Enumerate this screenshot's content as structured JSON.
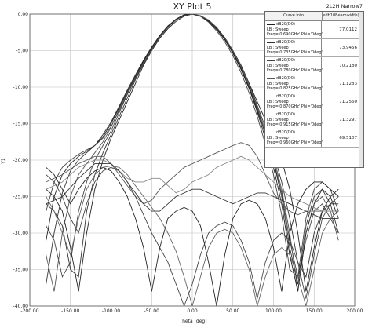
{
  "chart_data": {
    "type": "line",
    "title": "XY Plot 5",
    "corner_label": "2L2H Narrow7",
    "xlabel": "Theta [deg]",
    "ylabel": "Y1",
    "xlim": [
      -200,
      200
    ],
    "ylim": [
      -40,
      0
    ],
    "xticks": [
      -200,
      -150,
      -100,
      -50,
      0,
      50,
      100,
      150,
      200
    ],
    "xtick_labels": [
      "-200.00",
      "-150.00",
      "-100.00",
      "-50.00",
      "0.00",
      "50.00",
      "100.00",
      "150.00",
      "200.00"
    ],
    "yticks": [
      0,
      -5,
      -10,
      -15,
      -20,
      -25,
      -30,
      -35,
      -40
    ],
    "ytick_labels": [
      "0.00",
      "-5.00",
      "-10.00",
      "-15.00",
      "-20.00",
      "-25.00",
      "-30.00",
      "-35.00",
      "-40.00"
    ],
    "grid": true,
    "legend_position": "top-right",
    "legend_header": {
      "col1": "Curve Info",
      "col2": "xdb10Beamwidth(3)"
    },
    "series": [
      {
        "name": "dB20(D0)",
        "info1": "LB : Sweep",
        "info2": "Freq='0.690GHz' Phi='0deg'",
        "beamwidth": "77.0112",
        "color": "#222222",
        "x": [
          -180,
          -170,
          -160,
          -150,
          -140,
          -130,
          -120,
          -110,
          -100,
          -90,
          -80,
          -70,
          -60,
          -50,
          -40,
          -30,
          -20,
          -10,
          0,
          10,
          20,
          30,
          40,
          50,
          60,
          70,
          80,
          90,
          100,
          110,
          120,
          130,
          140,
          150,
          160,
          170,
          180
        ],
        "y": [
          -24,
          -25,
          -27,
          -32,
          -38,
          -30,
          -24,
          -20,
          -17,
          -14.5,
          -12,
          -9.5,
          -7,
          -5,
          -3.3,
          -2,
          -1,
          -0.3,
          0,
          -0.3,
          -1,
          -2,
          -3.3,
          -5,
          -7,
          -9.5,
          -12,
          -14.5,
          -17,
          -20,
          -24,
          -30,
          -38,
          -32,
          -27,
          -25,
          -24
        ]
      },
      {
        "name": "dB20(D0)",
        "info1": "LB : Sweep",
        "info2": "Freq='0.735GHz' Phi='0deg'",
        "beamwidth": "73.9456",
        "color": "#333333",
        "x": [
          -180,
          -170,
          -160,
          -150,
          -140,
          -130,
          -120,
          -110,
          -100,
          -90,
          -80,
          -70,
          -60,
          -50,
          -40,
          -30,
          -20,
          -10,
          0,
          10,
          20,
          30,
          40,
          50,
          60,
          70,
          80,
          90,
          100,
          110,
          120,
          130,
          140,
          150,
          160,
          170,
          180
        ],
        "y": [
          -26,
          -27,
          -29,
          -35,
          -36,
          -27,
          -22,
          -19,
          -16.5,
          -14,
          -11.5,
          -9,
          -6.8,
          -4.8,
          -3.1,
          -1.8,
          -0.8,
          -0.2,
          0,
          -0.3,
          -0.9,
          -1.9,
          -3.2,
          -5,
          -7,
          -9.5,
          -12.5,
          -15.5,
          -19,
          -23,
          -28,
          -34,
          -36,
          -30,
          -27,
          -26,
          -26
        ]
      },
      {
        "name": "dB20(D0)",
        "info1": "LB : Sweep",
        "info2": "Freq='0.780GHz' Phi='0deg'",
        "beamwidth": "70.2180",
        "color": "#444444",
        "x": [
          -180,
          -170,
          -160,
          -150,
          -140,
          -130,
          -120,
          -110,
          -100,
          -90,
          -80,
          -70,
          -60,
          -50,
          -40,
          -30,
          -20,
          -10,
          0,
          10,
          20,
          30,
          40,
          50,
          60,
          70,
          80,
          90,
          100,
          110,
          120,
          130,
          140,
          150,
          160,
          170,
          180
        ],
        "y": [
          -29,
          -31,
          -36,
          -34,
          -27,
          -23,
          -20,
          -18,
          -16,
          -13.5,
          -11,
          -8.7,
          -6.5,
          -4.6,
          -3,
          -1.7,
          -0.7,
          -0.1,
          0,
          -0.3,
          -1,
          -2.1,
          -3.5,
          -5.4,
          -7.6,
          -10.2,
          -13.2,
          -16.4,
          -20,
          -24.5,
          -31,
          -36,
          -31,
          -27,
          -26,
          -28,
          -30
        ]
      },
      {
        "name": "dB20(D0)",
        "info1": "LB : Sweep",
        "info2": "Freq='0.825GHz' Phi='0deg'",
        "beamwidth": "71.1283",
        "color": "#555555",
        "x": [
          -180,
          -170,
          -160,
          -150,
          -140,
          -130,
          -120,
          -110,
          -100,
          -90,
          -80,
          -70,
          -60,
          -50,
          -40,
          -30,
          -20,
          -10,
          0,
          10,
          20,
          30,
          40,
          50,
          60,
          70,
          80,
          90,
          100,
          110,
          120,
          130,
          140,
          150,
          160,
          170,
          180
        ],
        "y": [
          -33,
          -38,
          -30,
          -25,
          -22,
          -20.5,
          -19,
          -17.5,
          -15.5,
          -13,
          -10.8,
          -8.6,
          -6.5,
          -4.6,
          -3,
          -1.7,
          -0.7,
          -0.1,
          0,
          -0.2,
          -0.8,
          -1.8,
          -3.2,
          -5,
          -7.2,
          -9.8,
          -12.8,
          -16,
          -19.5,
          -24,
          -30,
          -38,
          -30,
          -26,
          -25,
          -27,
          -31
        ]
      },
      {
        "name": "dB20(D0)",
        "info1": "LB : Sweep",
        "info2": "Freq='0.870GHz' Phi='0deg'",
        "beamwidth": "71.2560",
        "color": "#333333",
        "x": [
          -180,
          -170,
          -160,
          -150,
          -140,
          -130,
          -120,
          -110,
          -100,
          -90,
          -80,
          -70,
          -60,
          -50,
          -40,
          -30,
          -20,
          -10,
          0,
          10,
          20,
          30,
          40,
          50,
          60,
          70,
          80,
          90,
          100,
          110,
          120,
          130,
          140,
          150,
          160,
          170,
          180
        ],
        "y": [
          -37,
          -30,
          -24.5,
          -21.5,
          -20,
          -19,
          -18,
          -16.5,
          -14.8,
          -12.6,
          -10.4,
          -8.3,
          -6.3,
          -4.5,
          -2.9,
          -1.6,
          -0.7,
          -0.1,
          0,
          -0.3,
          -0.9,
          -2,
          -3.4,
          -5.2,
          -7.4,
          -10,
          -13,
          -16.4,
          -20.2,
          -25,
          -32,
          -37,
          -29,
          -25,
          -24,
          -26,
          -30
        ]
      },
      {
        "name": "dB20(D0)",
        "info1": "LB : Sweep",
        "info2": "Freq='0.915GHz' Phi='0deg'",
        "beamwidth": "71.3297",
        "color": "#222222",
        "x": [
          -180,
          -170,
          -160,
          -150,
          -140,
          -130,
          -120,
          -110,
          -100,
          -90,
          -80,
          -70,
          -60,
          -50,
          -40,
          -30,
          -20,
          -10,
          0,
          10,
          20,
          30,
          40,
          50,
          60,
          70,
          80,
          90,
          100,
          110,
          120,
          130,
          140,
          150,
          160,
          170,
          180
        ],
        "y": [
          -31,
          -25,
          -22,
          -20.5,
          -19.5,
          -18.8,
          -18,
          -16.8,
          -15,
          -12.8,
          -10.6,
          -8.5,
          -6.4,
          -4.6,
          -3,
          -1.7,
          -0.7,
          -0.1,
          0,
          -0.3,
          -1,
          -2.1,
          -3.5,
          -5.3,
          -7.5,
          -10.2,
          -13.4,
          -17,
          -21,
          -26,
          -33,
          -38,
          -30,
          -26,
          -24,
          -25,
          -28
        ]
      },
      {
        "name": "dB20(D0)",
        "info1": "LB : Sweep",
        "info2": "Freq='0.960GHz' Phi='0deg'",
        "beamwidth": "69.5107",
        "color": "#444444",
        "x": [
          -180,
          -170,
          -160,
          -150,
          -140,
          -130,
          -120,
          -110,
          -100,
          -90,
          -80,
          -70,
          -60,
          -50,
          -40,
          -30,
          -20,
          -10,
          0,
          10,
          20,
          30,
          40,
          50,
          60,
          70,
          80,
          90,
          100,
          110,
          120,
          130,
          140,
          150,
          160,
          170,
          180
        ],
        "y": [
          -27,
          -23,
          -21,
          -20,
          -19.2,
          -18.6,
          -18,
          -17,
          -15.4,
          -13.2,
          -11,
          -8.8,
          -6.7,
          -4.8,
          -3.1,
          -1.8,
          -0.8,
          -0.2,
          0,
          -0.3,
          -1.1,
          -2.3,
          -3.8,
          -5.7,
          -8,
          -10.8,
          -14,
          -17.8,
          -22,
          -27.5,
          -35,
          -36,
          -28,
          -24,
          -23,
          -24,
          -27
        ]
      },
      {
        "x": [
          -180,
          -160,
          -140,
          -120,
          -110,
          -100,
          -90,
          -80,
          -70,
          -60,
          -50,
          -40,
          -30,
          -20,
          -10,
          0,
          10,
          20,
          30,
          40,
          50,
          60,
          70,
          80,
          90,
          100,
          110,
          120,
          130,
          140,
          150,
          160,
          180
        ],
        "color": "#555555",
        "y": [
          -23,
          -22,
          -20.5,
          -19.5,
          -19.5,
          -20.5,
          -22,
          -23.5,
          -25,
          -26,
          -25.5,
          -24,
          -23,
          -22,
          -21,
          -20.5,
          -20,
          -19.5,
          -19,
          -18.5,
          -18,
          -17.6,
          -18,
          -19.5,
          -22,
          -24.5,
          -26,
          -27,
          -27.5,
          -27,
          -27,
          -27,
          -27
        ]
      },
      {
        "x": [
          -180,
          -160,
          -140,
          -120,
          -110,
          -100,
          -90,
          -80,
          -70,
          -60,
          -50,
          -40,
          -30,
          -20,
          -10,
          0,
          10,
          20,
          30,
          40,
          50,
          60,
          70,
          80,
          90,
          100,
          110,
          120,
          130,
          140,
          150,
          160,
          180
        ],
        "color": "#888888",
        "y": [
          -24,
          -23,
          -21,
          -20,
          -20,
          -20.5,
          -21.5,
          -22.5,
          -23,
          -23,
          -22.5,
          -22.5,
          -23.5,
          -24.5,
          -24,
          -23,
          -22.5,
          -22,
          -21,
          -20.5,
          -20,
          -19.5,
          -20,
          -21,
          -22,
          -23,
          -24,
          -25,
          -25.5,
          -26,
          -26.5,
          -27,
          -27
        ]
      },
      {
        "x": [
          -180,
          -160,
          -140,
          -120,
          -100,
          -90,
          -80,
          -70,
          -60,
          -50,
          -40,
          -30,
          -20,
          -10,
          0,
          10,
          20,
          30,
          40,
          50,
          60,
          70,
          80,
          90,
          100,
          110,
          120,
          130,
          140,
          150,
          160,
          180
        ],
        "color": "#333333",
        "y": [
          -26,
          -25,
          -22.5,
          -20.5,
          -20.5,
          -21.5,
          -23,
          -24.5,
          -26,
          -27,
          -27,
          -26,
          -25,
          -24.5,
          -24,
          -24,
          -24.5,
          -25,
          -25.5,
          -26,
          -25.5,
          -25,
          -24.5,
          -24.5,
          -25,
          -25.5,
          -26,
          -26.5,
          -27,
          -27.5,
          -28,
          -28
        ]
      },
      {
        "x": [
          -180,
          -170,
          -160,
          -150,
          -140,
          -130,
          -120,
          -110,
          -100,
          -90,
          -80,
          -70,
          -60,
          -50,
          -40,
          -30,
          -20,
          -10,
          0,
          10,
          20,
          30,
          40,
          50,
          60,
          70,
          80,
          90,
          100,
          110,
          120,
          130,
          140,
          150,
          160,
          170,
          180
        ],
        "color": "#222222",
        "y": [
          -21,
          -22,
          -24,
          -26,
          -24,
          -22.5,
          -21.5,
          -21,
          -21.5,
          -23,
          -25,
          -28,
          -32,
          -38,
          -32,
          -28,
          -27,
          -26.5,
          -27,
          -29,
          -34,
          -40,
          -33,
          -28,
          -26,
          -25.5,
          -26,
          -28,
          -32,
          -38,
          -30,
          -26,
          -24,
          -23,
          -23,
          -24,
          -25
        ]
      },
      {
        "x": [
          -180,
          -170,
          -160,
          -150,
          -140,
          -130,
          -120,
          -110,
          -100,
          -90,
          -80,
          -70,
          -60,
          -50,
          -40,
          -30,
          -20,
          -10,
          0,
          10,
          20,
          30,
          40,
          50,
          60,
          70,
          80,
          90,
          100,
          110,
          120,
          130,
          140,
          150,
          160,
          170,
          180
        ],
        "color": "#444444",
        "y": [
          -22,
          -23,
          -25,
          -28,
          -30,
          -26,
          -23,
          -21.5,
          -21,
          -21.5,
          -23,
          -25,
          -27.5,
          -30,
          -32,
          -34,
          -37,
          -40,
          -37,
          -33,
          -30,
          -29,
          -28.5,
          -29,
          -31,
          -34,
          -39,
          -34,
          -31,
          -30,
          -31,
          -34,
          -39,
          -33,
          -28,
          -26,
          -25
        ]
      },
      {
        "x": [
          -180,
          -170,
          -160,
          -150,
          -140,
          -130,
          -120,
          -110,
          -100,
          -90,
          -80,
          -70,
          -60,
          -50,
          -40,
          -30,
          -20,
          -10,
          0,
          10,
          20,
          30,
          40,
          50,
          60,
          70,
          80,
          90,
          100,
          110,
          120,
          130,
          140,
          150,
          160,
          170,
          180
        ],
        "color": "#666666",
        "y": [
          -25,
          -27,
          -30,
          -33,
          -28,
          -24,
          -22,
          -21,
          -20.8,
          -21,
          -22,
          -23.5,
          -25,
          -26.5,
          -28,
          -30,
          -32.5,
          -36,
          -40,
          -36,
          -32,
          -30,
          -29.5,
          -30,
          -32,
          -35,
          -40,
          -36,
          -33,
          -32,
          -33,
          -36,
          -40,
          -35,
          -30,
          -28,
          -27
        ]
      }
    ]
  }
}
